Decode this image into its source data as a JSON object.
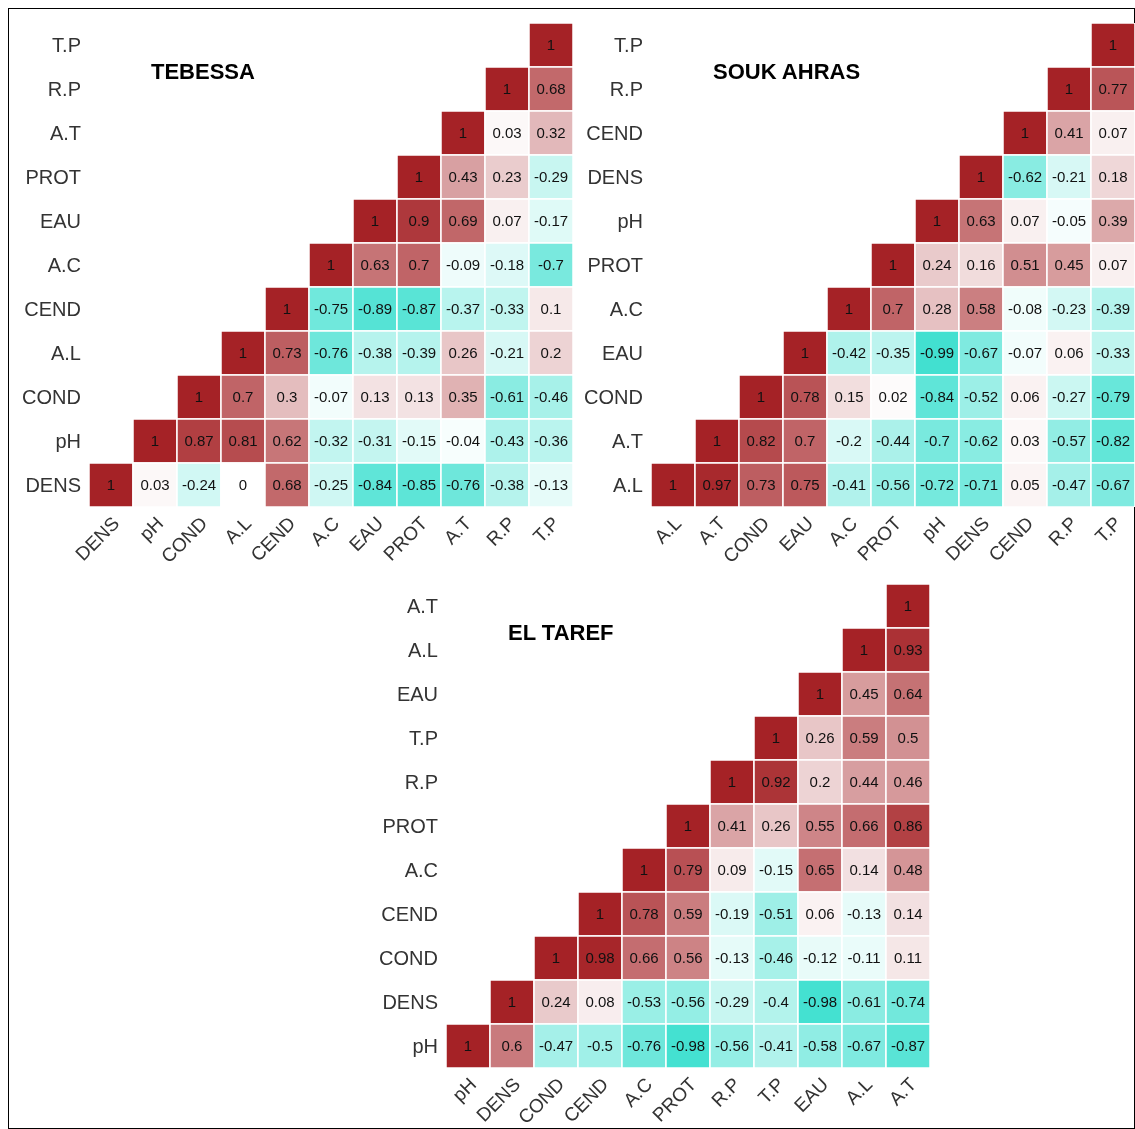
{
  "chart_data": [
    {
      "type": "heatmap",
      "title": "TEBESSA",
      "data_labels": true,
      "categories": [
        "DENS",
        "pH",
        "COND",
        "A.L",
        "CEND",
        "A.C",
        "EAU",
        "PROT",
        "A.T",
        "R.P",
        "T.P"
      ],
      "y_categories": [
        "T.P",
        "R.P",
        "A.T",
        "PROT",
        "EAU",
        "A.C",
        "CEND",
        "A.L",
        "COND",
        "pH",
        "DENS"
      ],
      "cells": [
        [
          null,
          null,
          null,
          null,
          null,
          null,
          null,
          null,
          null,
          null,
          1
        ],
        [
          null,
          null,
          null,
          null,
          null,
          null,
          null,
          null,
          null,
          1,
          0.68
        ],
        [
          null,
          null,
          null,
          null,
          null,
          null,
          null,
          null,
          1,
          0.03,
          0.32
        ],
        [
          null,
          null,
          null,
          null,
          null,
          null,
          null,
          1,
          0.43,
          0.23,
          -0.29
        ],
        [
          null,
          null,
          null,
          null,
          null,
          null,
          1,
          0.9,
          0.69,
          0.07,
          -0.17
        ],
        [
          null,
          null,
          null,
          null,
          null,
          1,
          0.63,
          0.7,
          -0.09,
          -0.18,
          -0.7
        ],
        [
          null,
          null,
          null,
          null,
          1,
          -0.75,
          -0.89,
          -0.87,
          -0.37,
          -0.33,
          0.1
        ],
        [
          null,
          null,
          null,
          1,
          0.73,
          -0.76,
          -0.38,
          -0.39,
          0.26,
          -0.21,
          0.2
        ],
        [
          null,
          null,
          1,
          0.7,
          0.3,
          -0.07,
          0.13,
          0.13,
          0.35,
          -0.61,
          -0.46
        ],
        [
          null,
          1,
          0.87,
          0.81,
          0.62,
          -0.32,
          -0.31,
          -0.15,
          -0.04,
          -0.43,
          -0.36
        ],
        [
          1,
          0.03,
          -0.24,
          0,
          0.68,
          -0.25,
          -0.84,
          -0.85,
          -0.76,
          -0.38,
          -0.13
        ]
      ]
    },
    {
      "type": "heatmap",
      "title": "SOUK AHRAS",
      "data_labels": true,
      "categories": [
        "A.L",
        "A.T",
        "COND",
        "EAU",
        "A.C",
        "PROT",
        "pH",
        "DENS",
        "CEND",
        "R.P",
        "T.P"
      ],
      "y_categories": [
        "T.P",
        "R.P",
        "CEND",
        "DENS",
        "pH",
        "PROT",
        "A.C",
        "EAU",
        "COND",
        "A.T",
        "A.L"
      ],
      "cells": [
        [
          null,
          null,
          null,
          null,
          null,
          null,
          null,
          null,
          null,
          null,
          1
        ],
        [
          null,
          null,
          null,
          null,
          null,
          null,
          null,
          null,
          null,
          1,
          0.77
        ],
        [
          null,
          null,
          null,
          null,
          null,
          null,
          null,
          null,
          1,
          0.41,
          0.07
        ],
        [
          null,
          null,
          null,
          null,
          null,
          null,
          null,
          1,
          -0.62,
          -0.21,
          0.18
        ],
        [
          null,
          null,
          null,
          null,
          null,
          null,
          1,
          0.63,
          0.07,
          -0.05,
          0.39
        ],
        [
          null,
          null,
          null,
          null,
          null,
          1,
          0.24,
          0.16,
          0.51,
          0.45,
          0.07
        ],
        [
          null,
          null,
          null,
          null,
          1,
          0.7,
          0.28,
          0.58,
          -0.08,
          -0.23,
          -0.39
        ],
        [
          null,
          null,
          null,
          1,
          -0.42,
          -0.35,
          -0.99,
          -0.67,
          -0.07,
          0.06,
          -0.33
        ],
        [
          null,
          null,
          1,
          0.78,
          0.15,
          0.02,
          -0.84,
          -0.52,
          0.06,
          -0.27,
          -0.79
        ],
        [
          null,
          1,
          0.82,
          0.7,
          -0.2,
          -0.44,
          -0.7,
          -0.62,
          0.03,
          -0.57,
          -0.82
        ],
        [
          1,
          0.97,
          0.73,
          0.75,
          -0.41,
          -0.56,
          -0.72,
          -0.71,
          0.05,
          -0.47,
          -0.67
        ]
      ]
    },
    {
      "type": "heatmap",
      "title": "EL TAREF",
      "data_labels": true,
      "categories": [
        "pH",
        "DENS",
        "COND",
        "CEND",
        "A.C",
        "PROT",
        "R.P",
        "T.P",
        "EAU",
        "A.L",
        "A.T"
      ],
      "y_categories": [
        "A.T",
        "A.L",
        "EAU",
        "T.P",
        "R.P",
        "PROT",
        "A.C",
        "CEND",
        "COND",
        "DENS",
        "pH"
      ],
      "cells": [
        [
          null,
          null,
          null,
          null,
          null,
          null,
          null,
          null,
          null,
          null,
          1
        ],
        [
          null,
          null,
          null,
          null,
          null,
          null,
          null,
          null,
          null,
          1,
          0.93
        ],
        [
          null,
          null,
          null,
          null,
          null,
          null,
          null,
          null,
          1,
          0.45,
          0.64
        ],
        [
          null,
          null,
          null,
          null,
          null,
          null,
          null,
          1,
          0.26,
          0.59,
          0.5
        ],
        [
          null,
          null,
          null,
          null,
          null,
          null,
          1,
          0.92,
          0.2,
          0.44,
          0.46
        ],
        [
          null,
          null,
          null,
          null,
          null,
          1,
          0.41,
          0.26,
          0.55,
          0.66,
          0.86
        ],
        [
          null,
          null,
          null,
          null,
          1,
          0.79,
          0.09,
          -0.15,
          0.65,
          0.14,
          0.48
        ],
        [
          null,
          null,
          null,
          1,
          0.78,
          0.59,
          -0.19,
          -0.51,
          0.06,
          -0.13,
          0.14
        ],
        [
          null,
          null,
          1,
          0.98,
          0.66,
          0.56,
          -0.13,
          -0.46,
          -0.12,
          -0.11,
          0.11
        ],
        [
          null,
          1,
          0.24,
          0.08,
          -0.53,
          -0.56,
          -0.29,
          -0.4,
          -0.98,
          -0.61,
          -0.74
        ],
        [
          1,
          0.6,
          -0.47,
          -0.5,
          -0.76,
          -0.98,
          -0.56,
          -0.41,
          -0.58,
          -0.67,
          -0.87
        ]
      ]
    }
  ]
}
